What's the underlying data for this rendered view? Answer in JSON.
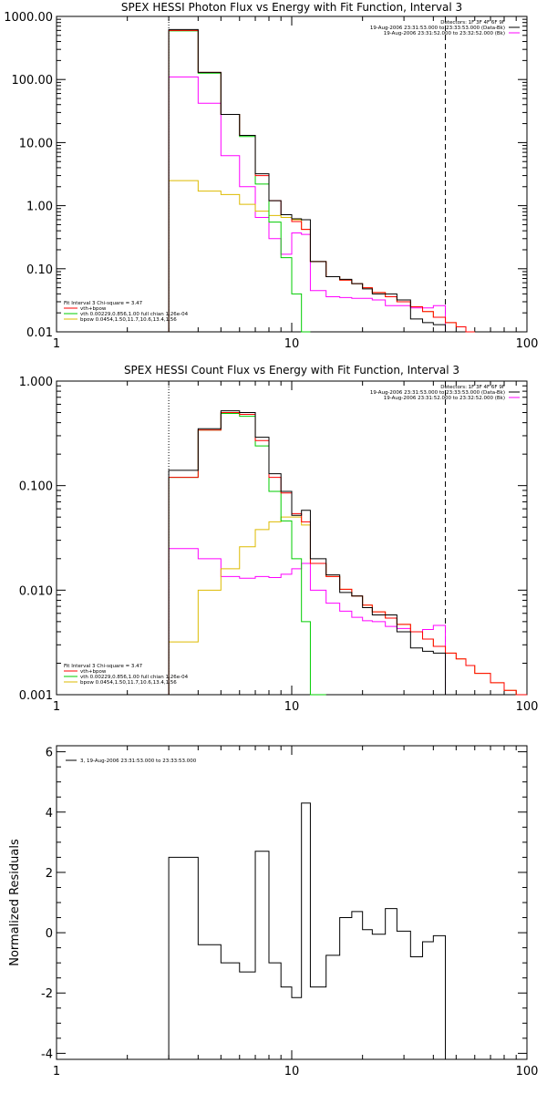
{
  "colors": {
    "observed": "#000000",
    "model_total": "#ff0000",
    "vth": "#00cc00",
    "bpow": "#ddbb00",
    "background": "#ff00ff"
  },
  "chart_data": [
    {
      "type": "line",
      "step": true,
      "title": "SPEX HESSI Photon Flux vs Energy with Fit Function, Interval 3",
      "xlabel": "",
      "ylabel": "",
      "xscale": "log",
      "yscale": "log",
      "xlim": [
        1,
        100
      ],
      "ylim": [
        0.01,
        1000
      ],
      "x_tick_labels": [
        "1",
        "10",
        "100"
      ],
      "y_ticks": [
        0.01,
        0.1,
        1,
        10,
        100,
        1000
      ],
      "y_tick_labels": [
        "0.01",
        "0.10",
        "1.00",
        "10.00",
        "100.00",
        "1000.00"
      ],
      "fit_range_lines": [
        3,
        45
      ],
      "header_lines": [
        "Detectors: 1F 3F 4F 6F 9F",
        "19-Aug-2006 23:31:53.000 to 23:33:53.000 (Data-Bk)",
        "19-Aug-2006 23:31:52.000 to 23:32:52.000 (Bk)"
      ],
      "legend_lines": [
        "Fit Interval 3   Chi-square = 3.47",
        "vth+bpow",
        "vth 0.00229,0.856,1.00  full chian 1.26e-04",
        "bpow 0.0454,1.50,11.7,10.6,13.4,1.56"
      ],
      "bin_edges": [
        3,
        4,
        5,
        6,
        7,
        8,
        9,
        10,
        11,
        12,
        14,
        16,
        18,
        20,
        22,
        25,
        28,
        32,
        36,
        40,
        45,
        50,
        55,
        60
      ],
      "series": [
        {
          "name": "Data-Bk",
          "color": "#000000",
          "values": [
            620,
            130,
            28,
            13,
            3.2,
            1.2,
            0.72,
            0.62,
            0.6,
            0.13,
            0.075,
            0.068,
            0.058,
            0.048,
            0.04,
            0.04,
            0.032,
            0.016,
            0.014,
            0.013,
            null,
            null,
            null
          ]
        },
        {
          "name": "vth+bpow",
          "color": "#ff0000",
          "values": [
            600,
            130,
            28,
            13,
            3.0,
            1.2,
            0.72,
            0.56,
            0.42,
            0.13,
            0.075,
            0.066,
            0.058,
            0.05,
            0.042,
            0.036,
            0.03,
            0.025,
            0.021,
            0.017,
            0.014,
            0.012,
            0.01
          ]
        },
        {
          "name": "vth",
          "color": "#00cc00",
          "values": [
            590,
            126,
            28,
            12.5,
            2.2,
            0.55,
            0.15,
            0.04,
            0.01,
            null,
            null,
            null,
            null,
            null,
            null,
            null,
            null,
            null,
            null,
            null,
            null,
            null,
            null
          ]
        },
        {
          "name": "bpow",
          "color": "#ddbb00",
          "values": [
            2.5,
            1.7,
            1.5,
            1.05,
            0.82,
            0.7,
            0.65,
            0.6,
            0.42,
            0.13,
            0.075,
            0.066,
            0.058,
            0.05,
            0.042,
            0.036,
            0.03,
            0.025,
            0.021,
            0.017,
            0.014,
            0.012,
            0.01
          ]
        },
        {
          "name": "Bk",
          "color": "#ff00ff",
          "values": [
            110,
            42,
            6.2,
            2.0,
            0.65,
            0.3,
            0.17,
            0.37,
            0.35,
            0.045,
            0.036,
            0.035,
            0.034,
            0.034,
            0.032,
            0.026,
            0.026,
            0.024,
            0.024,
            0.026,
            null,
            null,
            null
          ]
        }
      ]
    },
    {
      "type": "line",
      "step": true,
      "title": "SPEX HESSI Count Flux vs Energy with Fit Function, Interval 3",
      "xlabel": "",
      "ylabel": "",
      "xscale": "log",
      "yscale": "log",
      "xlim": [
        1,
        100
      ],
      "ylim": [
        0.001,
        1
      ],
      "x_tick_labels": [
        "1",
        "10",
        "100"
      ],
      "y_ticks": [
        0.001,
        0.01,
        0.1,
        1
      ],
      "y_tick_labels": [
        "0.001",
        "0.010",
        "0.100",
        "1.000"
      ],
      "fit_range_lines": [
        3,
        45
      ],
      "header_lines": [
        "Detectors: 1F 3F 4F 6F 9F",
        "19-Aug-2006 23:31:53.000 to 23:33:53.000 (Data-Bk)",
        "19-Aug-2006 23:31:52.000 to 23:32:52.000 (Bk)"
      ],
      "legend_lines": [
        "Fit Interval 3   Chi-square = 3.47",
        "vth+bpow",
        "vth 0.00229,0.856,1.00  full chian 1.26e-04",
        "bpow 0.0454,1.50,11.7,10.6,13.4,1.56"
      ],
      "bin_edges": [
        3,
        4,
        5,
        6,
        7,
        8,
        9,
        10,
        11,
        12,
        14,
        16,
        18,
        20,
        22,
        25,
        28,
        32,
        36,
        40,
        45,
        50,
        55,
        60,
        70,
        80,
        90,
        100
      ],
      "series": [
        {
          "name": "Data-Bk",
          "color": "#000000",
          "values": [
            0.14,
            0.35,
            0.52,
            0.5,
            0.29,
            0.13,
            0.088,
            0.052,
            0.058,
            0.02,
            0.014,
            0.0095,
            0.0088,
            0.0068,
            0.0058,
            0.0058,
            0.004,
            0.0028,
            0.0026,
            0.0025,
            null,
            null,
            null,
            null,
            null,
            null,
            null
          ]
        },
        {
          "name": "vth+bpow",
          "color": "#ff0000",
          "values": [
            0.12,
            0.34,
            0.5,
            0.48,
            0.27,
            0.12,
            0.085,
            0.054,
            0.045,
            0.018,
            0.0135,
            0.0102,
            0.0088,
            0.0072,
            0.0062,
            0.0054,
            0.0047,
            0.004,
            0.0034,
            0.0029,
            0.0025,
            0.0022,
            0.0019,
            0.0016,
            0.0013,
            0.0011,
            0.001
          ]
        },
        {
          "name": "vth",
          "color": "#00cc00",
          "values": [
            0.12,
            0.34,
            0.49,
            0.46,
            0.24,
            0.088,
            0.046,
            0.02,
            0.005,
            0.001,
            null,
            null,
            null,
            null,
            null,
            null,
            null,
            null,
            null,
            null,
            null,
            null,
            null,
            null,
            null,
            null,
            null
          ]
        },
        {
          "name": "bpow",
          "color": "#ddbb00",
          "values": [
            0.0032,
            0.01,
            0.016,
            0.026,
            0.038,
            0.045,
            0.05,
            0.05,
            0.042,
            0.018,
            0.0135,
            0.0102,
            0.0088,
            0.0072,
            0.0062,
            0.0054,
            0.0047,
            0.004,
            0.0034,
            0.0029,
            0.0025,
            0.0022,
            0.0019,
            0.0016,
            0.0013,
            0.0011,
            0.001
          ]
        },
        {
          "name": "Bk",
          "color": "#ff00ff",
          "values": [
            0.025,
            0.02,
            0.0135,
            0.013,
            0.0135,
            0.0132,
            0.0142,
            0.016,
            0.018,
            0.01,
            0.0075,
            0.0063,
            0.0055,
            0.0051,
            0.005,
            0.0045,
            0.0043,
            0.004,
            0.0042,
            0.0046,
            null,
            null,
            null,
            null,
            null,
            null,
            null
          ]
        }
      ]
    },
    {
      "type": "line",
      "step": true,
      "title": "",
      "xlabel": "",
      "ylabel": "Normalized Residuals",
      "xscale": "log",
      "yscale": "linear",
      "xlim": [
        1,
        100
      ],
      "ylim": [
        -4.2,
        6.2
      ],
      "x_tick_labels": [
        "1",
        "10",
        "100"
      ],
      "y_ticks": [
        -4,
        -2,
        0,
        2,
        4,
        6
      ],
      "y_tick_labels": [
        "-4",
        "-2",
        "0",
        "2",
        "4",
        "6"
      ],
      "legend_lines": [
        "3, 19-Aug-2006 23:31:53.000 to 23:33:53.000"
      ],
      "bin_edges": [
        3,
        4,
        5,
        6,
        7,
        8,
        9,
        10,
        11,
        12,
        14,
        16,
        18,
        20,
        22,
        25,
        28,
        32,
        36,
        40,
        45
      ],
      "series": [
        {
          "name": "",
          "color": "#000000",
          "values": [
            2.5,
            -0.4,
            -1.0,
            -1.3,
            2.7,
            -1.0,
            -1.8,
            -2.15,
            4.3,
            -1.8,
            -0.75,
            0.5,
            0.7,
            0.1,
            -0.05,
            0.8,
            0.05,
            -0.8,
            -0.3,
            -0.1
          ]
        }
      ]
    }
  ]
}
